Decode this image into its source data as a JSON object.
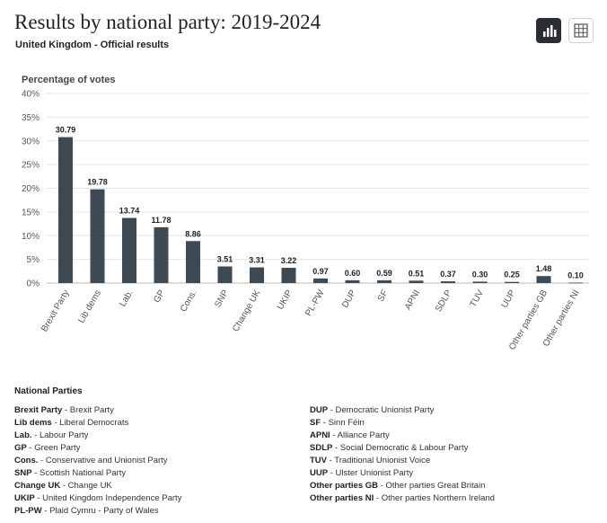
{
  "header": {
    "title": "Results by national party: 2019-2024",
    "subtitle": "United Kingdom - Official results"
  },
  "view_toggle": {
    "chart_icon": "bar-chart-icon",
    "table_icon": "table-grid-icon",
    "active": "chart",
    "active_color": "#2b2f33"
  },
  "chart_data": {
    "type": "bar",
    "ylabel": "Percentage of votes",
    "ylim": [
      0,
      40
    ],
    "yticks": [
      "0%",
      "5%",
      "10%",
      "15%",
      "20%",
      "25%",
      "30%",
      "35%",
      "40%"
    ],
    "grid": true,
    "bar_color": "#3d4a54",
    "categories": [
      "Brexit Party",
      "Lib dems",
      "Lab.",
      "GP",
      "Cons.",
      "SNP",
      "Change UK",
      "UKIP",
      "PL-PW",
      "DUP",
      "SF",
      "APNI",
      "SDLP",
      "TUV",
      "UUP",
      "Other parties GB",
      "Other parties NI"
    ],
    "values": [
      30.79,
      19.78,
      13.74,
      11.78,
      8.86,
      3.51,
      3.31,
      3.22,
      0.97,
      0.6,
      0.59,
      0.51,
      0.37,
      0.3,
      0.25,
      1.48,
      0.1
    ],
    "labels": [
      "30.79",
      "19.78",
      "13.74",
      "11.78",
      "8.86",
      "3.51",
      "3.31",
      "3.22",
      "0.97",
      "0.60",
      "0.59",
      "0.51",
      "0.37",
      "0.30",
      "0.25",
      "1.48",
      "0.10"
    ]
  },
  "legend": {
    "title": "National Parties",
    "left": [
      {
        "abbr": "Brexit Party",
        "name": "Brexit Party"
      },
      {
        "abbr": "Lib dems",
        "name": "Liberal Democrats"
      },
      {
        "abbr": "Lab.",
        "name": "Labour Party"
      },
      {
        "abbr": "GP",
        "name": "Green Party"
      },
      {
        "abbr": "Cons.",
        "name": "Conservative and Unionist Party"
      },
      {
        "abbr": "SNP",
        "name": "Scottish National Party"
      },
      {
        "abbr": "Change UK",
        "name": "Change UK"
      },
      {
        "abbr": "UKIP",
        "name": "United Kingdom Independence Party"
      },
      {
        "abbr": "PL-PW",
        "name": "Plaid Cymru - Party of Wales"
      }
    ],
    "right": [
      {
        "abbr": "DUP",
        "name": "Democratic Unionist Party"
      },
      {
        "abbr": "SF",
        "name": "Sinn Féin"
      },
      {
        "abbr": "APNI",
        "name": "Alliance Party"
      },
      {
        "abbr": "SDLP",
        "name": "Social Democratic & Labour Party"
      },
      {
        "abbr": "TUV",
        "name": "Traditional Unionist Voice"
      },
      {
        "abbr": "UUP",
        "name": "Ulster Unionist Party"
      },
      {
        "abbr": "Other parties GB",
        "name": "Other parties Great Britain"
      },
      {
        "abbr": "Other parties NI",
        "name": "Other parties Northern Ireland"
      }
    ]
  }
}
